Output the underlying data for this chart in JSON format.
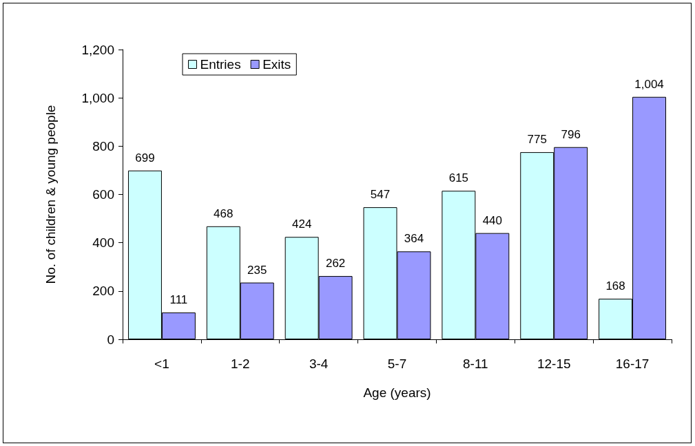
{
  "chart_data": {
    "type": "bar",
    "xlabel": "Age (years)",
    "ylabel": "No. of children & young people",
    "categories": [
      "<1",
      "1-2",
      "3-4",
      "5-7",
      "8-11",
      "12-15",
      "16-17"
    ],
    "series": [
      {
        "name": "Entries",
        "color": "#ccffff",
        "values": [
          699,
          468,
          424,
          547,
          615,
          775,
          168
        ],
        "value_labels": [
          "699",
          "468",
          "424",
          "547",
          "615",
          "775",
          "168"
        ]
      },
      {
        "name": "Exits",
        "color": "#9999ff",
        "values": [
          111,
          235,
          262,
          364,
          440,
          796,
          1004
        ],
        "value_labels": [
          "111",
          "235",
          "262",
          "364",
          "440",
          "796",
          "1,004"
        ]
      }
    ],
    "ylim": [
      0,
      1200
    ],
    "yticks": [
      0,
      200,
      400,
      600,
      800,
      {
        "value": 1000,
        "label": "1,000"
      },
      {
        "value": 1200,
        "label": "1,200"
      }
    ],
    "legend": "top left",
    "grid": false
  }
}
